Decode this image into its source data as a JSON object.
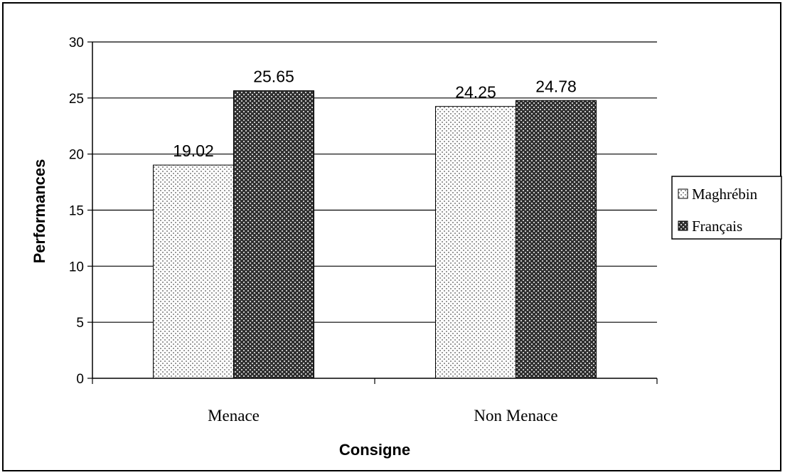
{
  "chart_data": {
    "type": "bar",
    "categories": [
      "Menace",
      "Non Menace"
    ],
    "series": [
      {
        "name": "Maghrébin",
        "values": [
          19.02,
          24.25
        ],
        "labels": [
          "19.02",
          "24.25"
        ]
      },
      {
        "name": "Français",
        "values": [
          25.65,
          24.78
        ],
        "labels": [
          "25.65",
          "24.78"
        ]
      }
    ],
    "xlabel": "Consigne",
    "ylabel": "Performances",
    "ylim": [
      0,
      30
    ],
    "yticks": [
      0,
      5,
      10,
      15,
      20,
      25,
      30
    ],
    "grid": true,
    "legend_position": "right",
    "colors": {
      "light_pattern": "#ececec",
      "dark_pattern": "#3a3a3a",
      "axis": "#000000"
    }
  }
}
